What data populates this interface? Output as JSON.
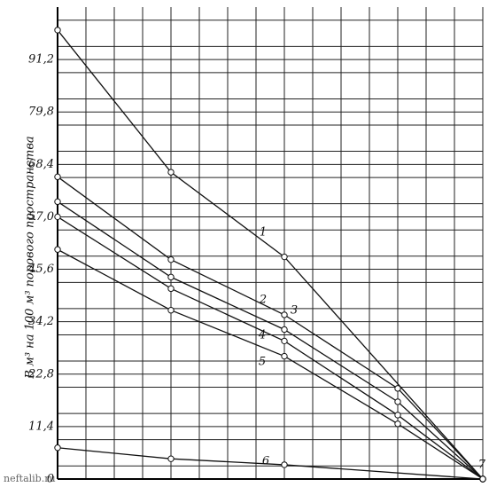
{
  "chart_data": {
    "type": "line",
    "y_label": "В м³ на 100 м³ порового пространства",
    "annotations": [
      "7",
      "neftalib.ru"
    ],
    "xlim": [
      0,
      15
    ],
    "ylim": [
      0,
      102.6
    ],
    "yticks": [
      0,
      {
        "value": 11.4,
        "label": "11,4"
      },
      {
        "value": 22.8,
        "label": "22,8"
      },
      {
        "value": 34.2,
        "label": "34,2"
      },
      {
        "value": 45.6,
        "label": "45,6"
      },
      {
        "value": 57.0,
        "label": "57,0"
      },
      {
        "value": 68.4,
        "label": "68,4"
      },
      {
        "value": 79.8,
        "label": "79,8"
      },
      {
        "value": 91.2,
        "label": "91,2"
      }
    ],
    "grid": true,
    "series": [
      {
        "name": "1",
        "color": "#111",
        "x": [
          0,
          4,
          8,
          15
        ],
        "values": [
          97.6,
          66.7,
          48.3,
          0
        ]
      },
      {
        "name": "2",
        "color": "#111",
        "x": [
          0,
          4,
          8,
          12,
          15
        ],
        "values": [
          65.7,
          47.7,
          35.7,
          19.7,
          0
        ]
      },
      {
        "name": "3",
        "color": "#111",
        "x": [
          0,
          4,
          8,
          12,
          15
        ],
        "values": [
          60.3,
          43.9,
          32.5,
          16.8,
          0
        ]
      },
      {
        "name": "4",
        "color": "#111",
        "x": [
          0,
          4,
          8,
          12,
          15
        ],
        "values": [
          57.0,
          41.4,
          30.0,
          13.9,
          0
        ]
      },
      {
        "name": "5",
        "color": "#111",
        "x": [
          0,
          4,
          8,
          12,
          15
        ],
        "values": [
          49.9,
          36.7,
          26.7,
          12.0,
          0
        ]
      },
      {
        "name": "6",
        "color": "#111",
        "x": [
          0,
          4,
          8,
          15
        ],
        "values": [
          6.8,
          4.4,
          3.1,
          0
        ]
      }
    ]
  }
}
